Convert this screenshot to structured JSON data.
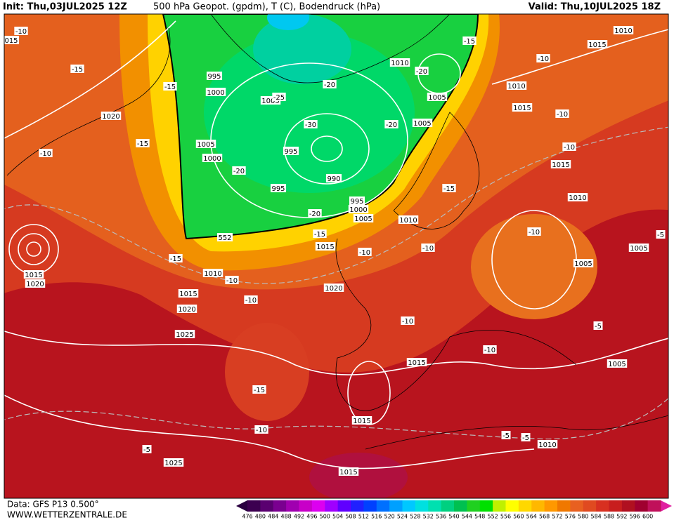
{
  "header": {
    "init": "Init: Thu,03JUL2025 12Z",
    "title": "500 hPa Geopot. (gpdm), T (C), Bodendruck (hPa)",
    "valid": "Valid: Thu,10JUL2025 18Z"
  },
  "footer": {
    "data_source": "Data: GFS P13 0.500°",
    "website": "WWW.WETTERZENTRALE.DE"
  },
  "colorbar": {
    "labels": [
      "476",
      "480",
      "484",
      "488",
      "492",
      "496",
      "500",
      "504",
      "508",
      "512",
      "516",
      "520",
      "524",
      "528",
      "532",
      "536",
      "540",
      "544",
      "548",
      "552",
      "556",
      "560",
      "564",
      "568",
      "572",
      "576",
      "580",
      "584",
      "588",
      "592",
      "596",
      "600"
    ],
    "colors": [
      "#3c0050",
      "#5a0070",
      "#7a0090",
      "#a000b0",
      "#c800c8",
      "#dc00f0",
      "#a000ff",
      "#6000ff",
      "#2020ff",
      "#0040ff",
      "#0070ff",
      "#00a0ff",
      "#00c8ff",
      "#00e0e0",
      "#00e0b0",
      "#00d080",
      "#00c050",
      "#20d020",
      "#00e000",
      "#c0f000",
      "#ffff00",
      "#ffd800",
      "#ffb800",
      "#ff9800",
      "#f07800",
      "#e86020",
      "#e04a20",
      "#d83020",
      "#c81e1e",
      "#b01020",
      "#a00030",
      "#c0105a"
    ]
  },
  "map": {
    "contour_labels": [
      "1010",
      "1015",
      "-15",
      "-10",
      "1010",
      "-20",
      "995",
      "1000",
      "-15",
      "-15",
      "-10",
      "015",
      "1005",
      "-25",
      "-20",
      "1005",
      "1010",
      "1015",
      "-10",
      "1020",
      "1005",
      "-20",
      "-30",
      "-10",
      "-15",
      "1005",
      "995",
      "1000",
      "-10",
      "1015",
      "-20",
      "995",
      "990",
      "-15",
      "1010",
      "995",
      "1000",
      "1005",
      "1010",
      "-20",
      "-15",
      "552",
      "-10",
      "-5",
      "1015",
      "-10",
      "-10",
      "1005",
      "-15",
      "1015",
      "1020",
      "1010",
      "-10",
      "1005",
      "1020",
      "1015",
      "-10",
      "1020",
      "-10",
      "-5",
      "1025",
      "-10",
      "1015",
      "1005",
      "-15",
      "1015",
      "-10",
      "-5",
      "-5",
      "1010",
      "-5",
      "1025",
      "1015"
    ]
  }
}
